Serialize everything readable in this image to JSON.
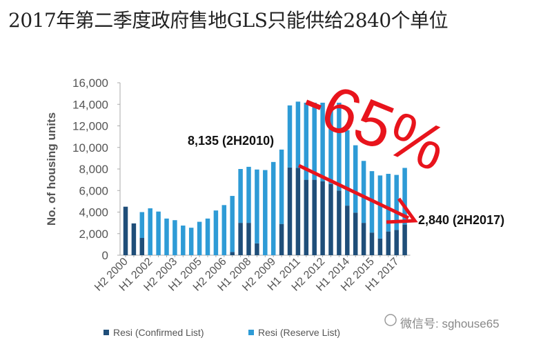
{
  "title": "2017年第二季度政府售地GLS只能供给2840个单位",
  "watermark": "微信号: sghouse65",
  "chart_data": {
    "type": "bar",
    "stacked": true,
    "title": "",
    "xlabel": "",
    "ylabel": "No. of housing units",
    "ylim": [
      0,
      16000
    ],
    "yticks": [
      0,
      2000,
      4000,
      6000,
      8000,
      10000,
      12000,
      14000,
      16000
    ],
    "ytick_labels": [
      "0",
      "2,000",
      "4,000",
      "6,000",
      "8,000",
      "10,000",
      "12,000",
      "14,000",
      "16,000"
    ],
    "categories": [
      "H2 2000",
      "H1 2001",
      "H2 2001",
      "H1 2002",
      "H2 2002",
      "H1 2003",
      "H2 2003",
      "H1 2004",
      "H2 2004",
      "H1 2005",
      "H2 2005",
      "H1 2006",
      "H2 2006",
      "H1 2007",
      "H2 2007",
      "H1 2008",
      "H2 2008",
      "H1 2009",
      "H2 2009",
      "H1 2010",
      "H2 2010",
      "H1 2011",
      "H2 2011",
      "H1 2012",
      "H2 2012",
      "H1 2013",
      "H2 2013",
      "H1 2014",
      "H2 2014",
      "H1 2015",
      "H2 2015",
      "H1 2016",
      "H2 2016",
      "H1 2017",
      "H2 2017"
    ],
    "xtick_labels": [
      "H2 2000",
      "H1 2002",
      "H2 2003",
      "H1 2005",
      "H2 2006",
      "H1 2008",
      "H2 2009",
      "H1 2011",
      "H2 2012",
      "H1 2014",
      "H2 2015",
      "H1 2017"
    ],
    "series": [
      {
        "name": "Resi (Confirmed List)",
        "color": "#1f4e79",
        "values": [
          4500,
          2950,
          1600,
          0,
          0,
          0,
          0,
          0,
          0,
          0,
          0,
          0,
          0,
          300,
          3000,
          3000,
          1100,
          0,
          0,
          2900,
          8135,
          8100,
          7000,
          7000,
          6850,
          6600,
          6000,
          4600,
          3950,
          3000,
          2100,
          1550,
          2200,
          2350,
          2840
        ]
      },
      {
        "name": "Resi (Reserve List)",
        "color": "#2e9bd6",
        "values": [
          0,
          0,
          2400,
          4350,
          4050,
          3400,
          3250,
          2750,
          2550,
          3100,
          3400,
          4150,
          4650,
          5200,
          5000,
          5200,
          6850,
          7900,
          8650,
          6900,
          5765,
          6150,
          7150,
          7150,
          7300,
          7450,
          8150,
          7000,
          6250,
          5750,
          5700,
          5850,
          5350,
          5100,
          5260
        ]
      }
    ],
    "legend": "bottom",
    "grid": false,
    "annotations": [
      "8,135 (2H2010)",
      "2,840 (2H2017)",
      "-65%"
    ]
  }
}
